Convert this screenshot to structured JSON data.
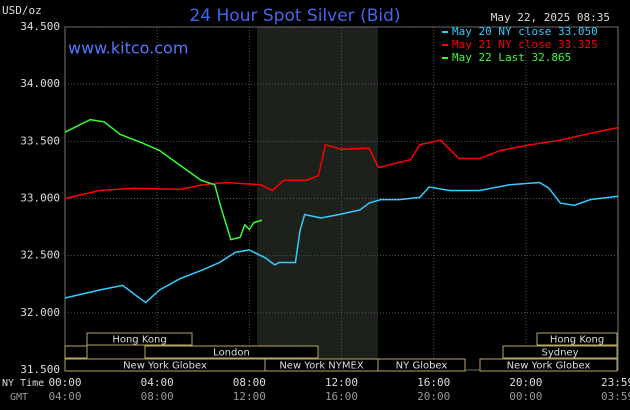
{
  "chart_data": {
    "type": "line",
    "title": "24 Hour Spot Silver (Bid)",
    "ylabel": "USD/oz",
    "timestamp": "May 22, 2025 08:35",
    "watermark": "www.kitco.com",
    "xlabel": "NY Time",
    "x2label": "GMT",
    "xlim": [
      0,
      24
    ],
    "xticks": [
      {
        "value": 0,
        "label": "00:00"
      },
      {
        "value": 4,
        "label": "04:00"
      },
      {
        "value": 8,
        "label": "08:00"
      },
      {
        "value": 12,
        "label": "12:00"
      },
      {
        "value": 16,
        "label": "16:00"
      },
      {
        "value": 20,
        "label": "20:00"
      },
      {
        "value": 23.983,
        "label": "23:59"
      }
    ],
    "x2ticklabels": [
      "04:00",
      "08:00",
      "12:00",
      "16:00",
      "20:00",
      "00:00",
      "03:59"
    ],
    "ylim": [
      31.5,
      34.5
    ],
    "yticks": [
      {
        "value": 31.5,
        "label": "31.500"
      },
      {
        "value": 32,
        "label": "32.000"
      },
      {
        "value": 32.5,
        "label": "32.500"
      },
      {
        "value": 33,
        "label": "33.000"
      },
      {
        "value": 33.5,
        "label": "33.500"
      },
      {
        "value": 34,
        "label": "34.000"
      },
      {
        "value": 34.5,
        "label": "34.500"
      }
    ],
    "grid": true,
    "sessions": [
      "Hong Kong",
      "Hong Kong",
      "London",
      "Sydney",
      "New York Globex",
      "New York NYMEX",
      "NY Globex",
      "New York Globex"
    ],
    "series": [
      {
        "name": "May 20 NY close 33.050",
        "color": "#33ccff",
        "x": [
          0,
          1.5,
          2.5,
          3.5,
          4.1,
          5,
          5.9,
          6.7,
          7.4,
          8,
          8.7,
          9.1,
          9.3,
          10,
          10.2,
          10.4,
          11.1,
          11.9,
          12.8,
          13.2,
          13.7,
          14.5,
          15.4,
          15.8,
          16.7,
          18,
          19.3,
          20.6,
          21,
          21.5,
          22.1,
          22.8,
          24
        ],
        "values": [
          32.13,
          32.2,
          32.24,
          32.09,
          32.2,
          32.3,
          32.37,
          32.44,
          32.53,
          32.55,
          32.48,
          32.42,
          32.44,
          32.44,
          32.72,
          32.86,
          32.83,
          32.86,
          32.9,
          32.96,
          32.99,
          32.99,
          33.01,
          33.1,
          33.07,
          33.07,
          33.12,
          33.14,
          33.09,
          32.96,
          32.94,
          32.99,
          33.02
        ]
      },
      {
        "name": "May 21 NY close 33.325",
        "color": "#ff0000",
        "x": [
          0,
          1.5,
          3,
          5,
          6,
          7,
          8.5,
          9,
          9.5,
          10.5,
          11,
          11.3,
          12,
          13.2,
          13.6,
          15,
          15.4,
          16.3,
          17.1,
          18,
          18.9,
          20.2,
          21.5,
          22.8,
          24
        ],
        "values": [
          33.0,
          33.07,
          33.09,
          33.08,
          33.12,
          33.14,
          33.12,
          33.07,
          33.16,
          33.16,
          33.2,
          33.47,
          33.43,
          33.44,
          33.27,
          33.34,
          33.47,
          33.51,
          33.35,
          33.35,
          33.42,
          33.47,
          33.51,
          33.57,
          33.62
        ]
      },
      {
        "name": "May 22 Last 32.865",
        "color": "#33ff33",
        "x": [
          0,
          1.1,
          1.7,
          2.4,
          3.3,
          4.1,
          5,
          5.9,
          6.5,
          6.8,
          7.2,
          7.6,
          7.8,
          8,
          8.2,
          8.55
        ],
        "values": [
          33.58,
          33.69,
          33.67,
          33.56,
          33.49,
          33.42,
          33.29,
          33.16,
          33.12,
          32.9,
          32.64,
          32.66,
          32.77,
          32.73,
          32.79,
          32.81
        ]
      }
    ]
  }
}
